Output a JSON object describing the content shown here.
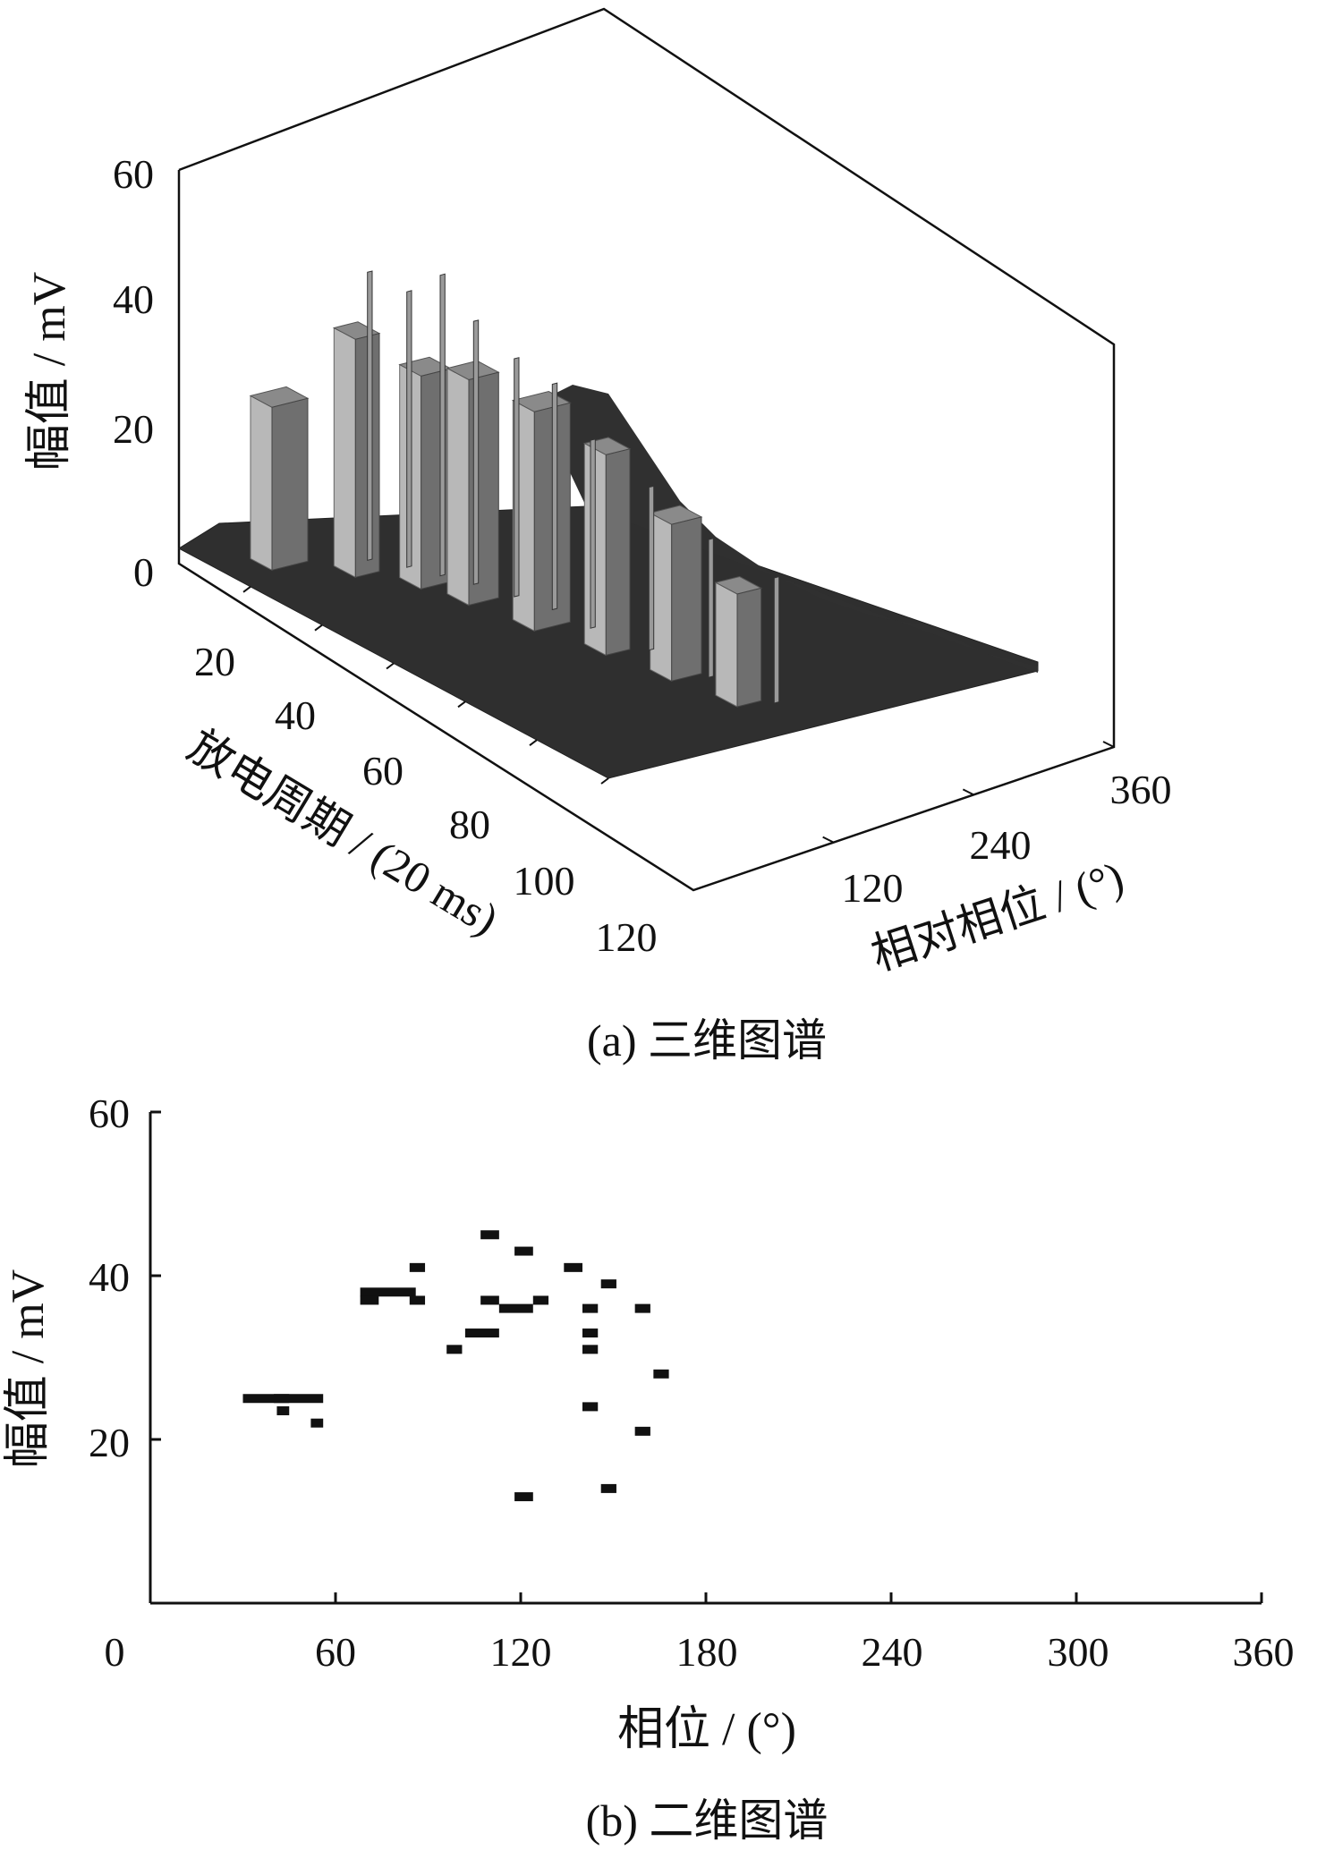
{
  "chart_data": [
    {
      "type": "bar3d",
      "caption": "(a)  三维图谱",
      "zlabel": "幅值 / mV",
      "ylabel": "放电周期 / (20 ms)",
      "xlabel": "相对相位 / (°)",
      "z_ticks": [
        "0",
        "20",
        "40",
        "60"
      ],
      "y_ticks": [
        "20",
        "40",
        "60",
        "80",
        "100",
        "120"
      ],
      "x_ticks": [
        "120",
        "240",
        "360"
      ],
      "zlim": [
        0,
        60
      ],
      "ylim": [
        0,
        120
      ],
      "xlim": [
        0,
        360
      ],
      "grid": false,
      "rows": [
        {
          "cycle": 10,
          "phase_start": 30,
          "phase_end": 60,
          "amplitude": 26
        },
        {
          "cycle": 20,
          "phase_start": 70,
          "phase_end": 90,
          "amplitude": 38
        },
        {
          "cycle": 30,
          "phase_start": 95,
          "phase_end": 120,
          "amplitude": 34
        },
        {
          "cycle": 40,
          "phase_start": 105,
          "phase_end": 130,
          "amplitude": 36
        },
        {
          "cycle": 55,
          "phase_start": 115,
          "phase_end": 145,
          "amplitude": 35
        },
        {
          "cycle": 70,
          "phase_start": 130,
          "phase_end": 150,
          "amplitude": 32
        },
        {
          "cycle": 85,
          "phase_start": 140,
          "phase_end": 165,
          "amplitude": 25
        },
        {
          "cycle": 100,
          "phase_start": 150,
          "phase_end": 170,
          "amplitude": 18
        }
      ],
      "spikes": [
        {
          "cycle": 18,
          "phase": 95,
          "amplitude": 46
        },
        {
          "cycle": 24,
          "phase": 110,
          "amplitude": 44
        },
        {
          "cycle": 30,
          "phase": 120,
          "amplitude": 48
        },
        {
          "cycle": 36,
          "phase": 130,
          "amplitude": 42
        },
        {
          "cycle": 44,
          "phase": 140,
          "amplitude": 38
        },
        {
          "cycle": 52,
          "phase": 148,
          "amplitude": 36
        },
        {
          "cycle": 62,
          "phase": 150,
          "amplitude": 30
        },
        {
          "cycle": 75,
          "phase": 160,
          "amplitude": 26
        },
        {
          "cycle": 90,
          "phase": 165,
          "amplitude": 22
        },
        {
          "cycle": 105,
          "phase": 175,
          "amplitude": 20
        }
      ]
    },
    {
      "type": "scatter",
      "caption": "(b)  二维图谱",
      "xlabel": "相位 / (°)",
      "ylabel": "幅值 / mV",
      "x_ticks": [
        "0",
        "60",
        "120",
        "180",
        "240",
        "300",
        "360"
      ],
      "y_ticks": [
        "20",
        "40",
        "60"
      ],
      "xlim": [
        0,
        360
      ],
      "ylim": [
        0,
        60
      ],
      "grid": false,
      "points": [
        {
          "x": 30,
          "x2": 45,
          "y": 25
        },
        {
          "x": 40,
          "x2": 56,
          "y": 25
        },
        {
          "x": 41,
          "x2": 45,
          "y": 23.5
        },
        {
          "x": 52,
          "x2": 56,
          "y": 22
        },
        {
          "x": 68,
          "x2": 86,
          "y": 38
        },
        {
          "x": 68,
          "x2": 74,
          "y": 37
        },
        {
          "x": 84,
          "x2": 89,
          "y": 41
        },
        {
          "x": 84,
          "x2": 89,
          "y": 37
        },
        {
          "x": 96,
          "x2": 101,
          "y": 31
        },
        {
          "x": 102,
          "x2": 113,
          "y": 33
        },
        {
          "x": 107,
          "x2": 113,
          "y": 45
        },
        {
          "x": 107,
          "x2": 113,
          "y": 37
        },
        {
          "x": 113,
          "x2": 124,
          "y": 36
        },
        {
          "x": 118,
          "x2": 124,
          "y": 43
        },
        {
          "x": 124,
          "x2": 129,
          "y": 37
        },
        {
          "x": 118,
          "x2": 124,
          "y": 13
        },
        {
          "x": 134,
          "x2": 140,
          "y": 41
        },
        {
          "x": 140,
          "x2": 145,
          "y": 36
        },
        {
          "x": 140,
          "x2": 145,
          "y": 33
        },
        {
          "x": 140,
          "x2": 145,
          "y": 31
        },
        {
          "x": 140,
          "x2": 145,
          "y": 24
        },
        {
          "x": 146,
          "x2": 151,
          "y": 39
        },
        {
          "x": 146,
          "x2": 151,
          "y": 14
        },
        {
          "x": 157,
          "x2": 162,
          "y": 36
        },
        {
          "x": 157,
          "x2": 162,
          "y": 21
        },
        {
          "x": 163,
          "x2": 168,
          "y": 28
        }
      ]
    }
  ]
}
